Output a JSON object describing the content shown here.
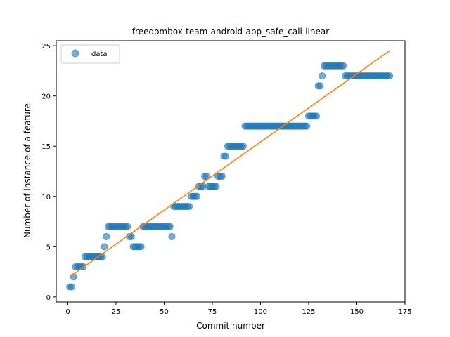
{
  "chart_data": {
    "type": "scatter",
    "title": "freedombox-team-android-app_safe_call-linear",
    "xlabel": "Commit number",
    "ylabel": "Number of instance of a feature",
    "xlim": [
      -6,
      175
    ],
    "ylim": [
      -0.5,
      25.5
    ],
    "xticks": [
      0,
      25,
      50,
      75,
      100,
      125,
      150,
      175
    ],
    "yticks": [
      0,
      5,
      10,
      15,
      20,
      25
    ],
    "grid": false,
    "legend": {
      "placement": "top-left",
      "entries": [
        "data"
      ]
    },
    "colors": {
      "points": "#1f77b4",
      "fit": "#ff7f0e"
    },
    "series": [
      {
        "name": "data",
        "kind": "points",
        "runs": [
          [
            1,
            2,
            1
          ],
          [
            3,
            3,
            2
          ],
          [
            4,
            8,
            3
          ],
          [
            9,
            18,
            4
          ],
          [
            19,
            19,
            5
          ],
          [
            20,
            20,
            6
          ],
          [
            21,
            31,
            7
          ],
          [
            32,
            33,
            6
          ],
          [
            34,
            38,
            5
          ],
          [
            39,
            53,
            7
          ],
          [
            54,
            54,
            6
          ],
          [
            55,
            63,
            9
          ],
          [
            64,
            67,
            10
          ],
          [
            68,
            70,
            11
          ],
          [
            71,
            72,
            12
          ],
          [
            73,
            77,
            11
          ],
          [
            78,
            80,
            12
          ],
          [
            81,
            82,
            14
          ],
          [
            83,
            91,
            15
          ],
          [
            92,
            124,
            17
          ],
          [
            125,
            129,
            18
          ],
          [
            130,
            131,
            21
          ],
          [
            132,
            132,
            22
          ],
          [
            133,
            143,
            23
          ],
          [
            144,
            167,
            22
          ]
        ]
      },
      {
        "name": "",
        "kind": "fit-line",
        "x": [
          1,
          167
        ],
        "y": [
          2.0,
          24.5
        ]
      }
    ]
  }
}
